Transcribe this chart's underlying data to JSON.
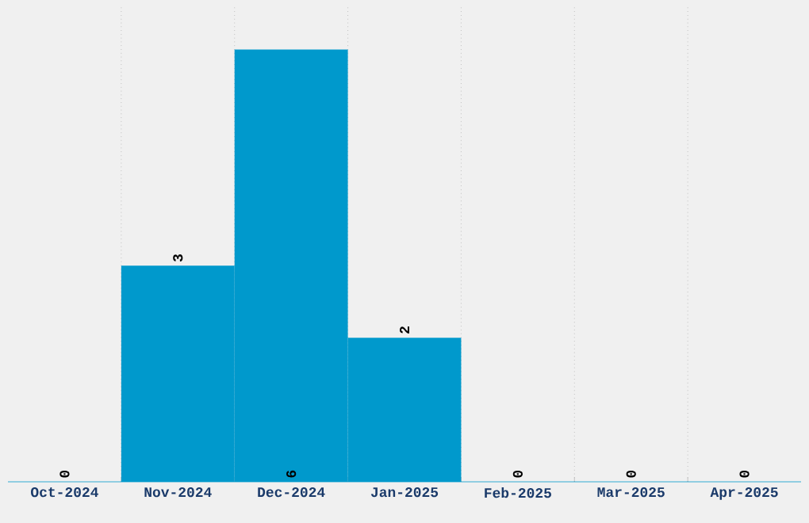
{
  "chart_data": {
    "type": "bar",
    "categories": [
      "Oct-2024",
      "Nov-2024",
      "Dec-2024",
      "Jan-2025",
      "Feb-2025",
      "Mar-2025",
      "Apr-2025"
    ],
    "values": [
      0,
      3,
      6,
      2,
      0,
      0,
      0
    ],
    "color": "#0099cc",
    "ylim": [
      0,
      6.6
    ],
    "tick_labels": "x",
    "grid": true,
    "data_labels": true
  }
}
